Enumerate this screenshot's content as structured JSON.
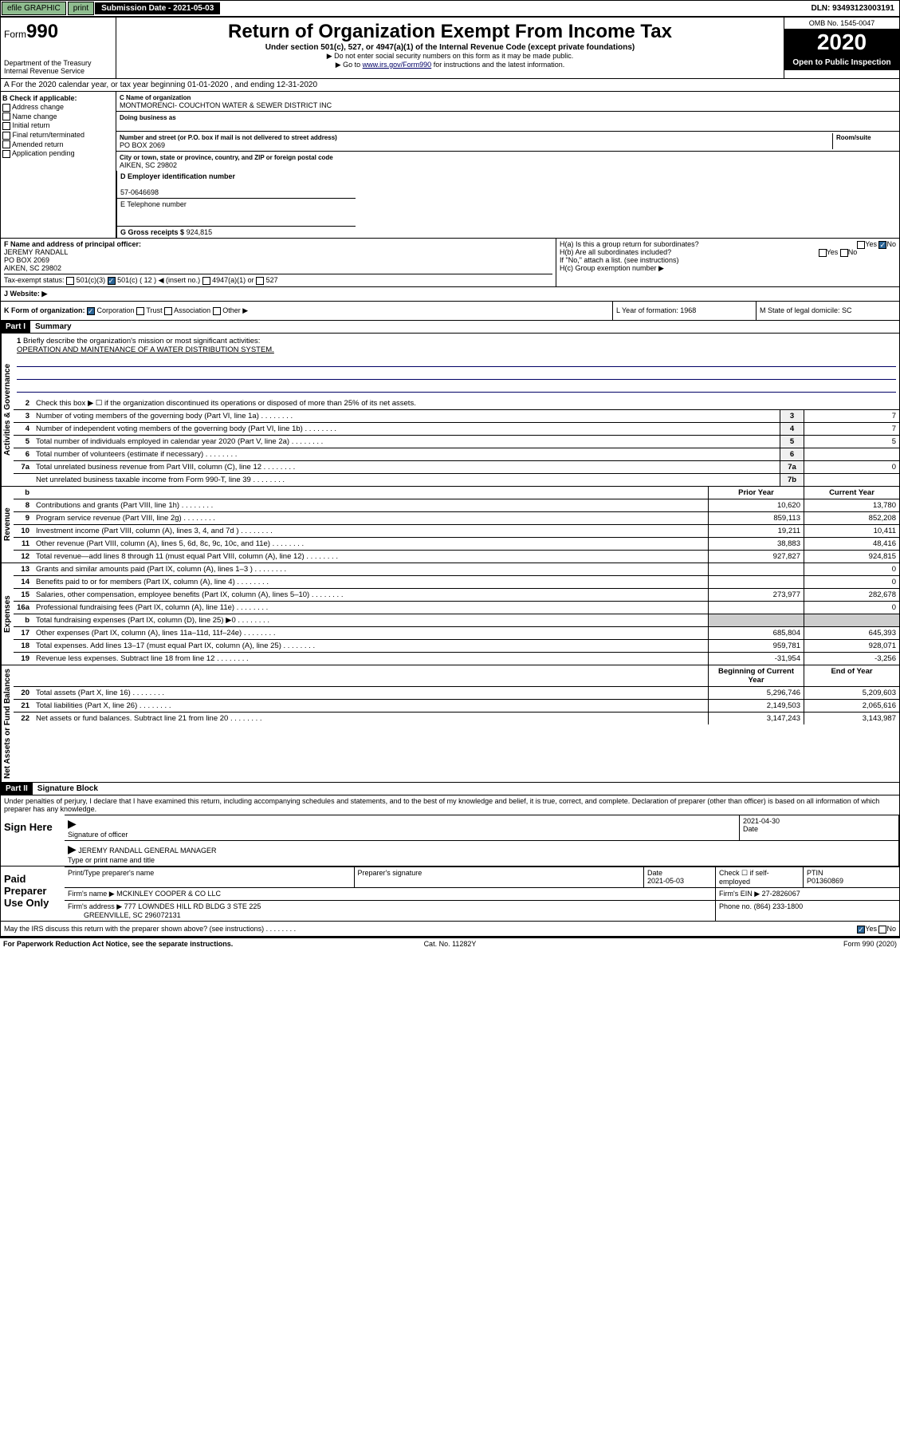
{
  "top": {
    "efile": "efile GRAPHIC",
    "print": "print",
    "sub_lbl": "Submission Date - 2021-05-03",
    "dln": "DLN: 93493123003191"
  },
  "header": {
    "form": "990",
    "form_prefix": "Form",
    "dept": "Department of the Treasury\nInternal Revenue Service",
    "title": "Return of Organization Exempt From Income Tax",
    "subtitle": "Under section 501(c), 527, or 4947(a)(1) of the Internal Revenue Code (except private foundations)",
    "instr1": "▶ Do not enter social security numbers on this form as it may be made public.",
    "instr2": "▶ Go to ",
    "instr2_link": "www.irs.gov/Form990",
    "instr2_suf": " for instructions and the latest information.",
    "omb": "OMB No. 1545-0047",
    "year": "2020",
    "open": "Open to Public Inspection"
  },
  "row_a": "A For the 2020 calendar year, or tax year beginning 01-01-2020   , and ending 12-31-2020",
  "section_b": {
    "hdr": "B Check if applicable:",
    "opts": [
      "Address change",
      "Name change",
      "Initial return",
      "Final return/terminated",
      "Amended return",
      "Application pending"
    ]
  },
  "section_c": {
    "name_lbl": "C Name of organization",
    "name": "MONTMORENCI- COUCHTON WATER & SEWER DISTRICT INC",
    "dba_lbl": "Doing business as",
    "addr_lbl": "Number and street (or P.O. box if mail is not delivered to street address)",
    "room_lbl": "Room/suite",
    "addr": "PO BOX 2069",
    "city_lbl": "City or town, state or province, country, and ZIP or foreign postal code",
    "city": "AIKEN, SC  29802"
  },
  "section_d": {
    "ein_lbl": "D Employer identification number",
    "ein": "57-0646698",
    "tel_lbl": "E Telephone number",
    "gross_lbl": "G Gross receipts $",
    "gross": "924,815"
  },
  "section_f": {
    "lbl": "F  Name and address of principal officer:",
    "name": "JEREMY RANDALL",
    "addr1": "PO BOX 2069",
    "addr2": "AIKEN, SC  29802"
  },
  "section_h": {
    "a": "H(a)  Is this a group return for subordinates?",
    "b": "H(b)  Are all subordinates included?",
    "ifno": "If \"No,\" attach a list. (see instructions)",
    "c": "H(c)  Group exemption number ▶"
  },
  "tax_status": {
    "lbl": "Tax-exempt status:",
    "o1": "501(c)(3)",
    "o2": "501(c) ( 12 ) ◀ (insert no.)",
    "o3": "4947(a)(1) or",
    "o4": "527"
  },
  "website_lbl": "J   Website: ▶",
  "row_k": {
    "lbl": "K Form of organization:",
    "o1": "Corporation",
    "o2": "Trust",
    "o3": "Association",
    "o4": "Other ▶",
    "l": "L Year of formation: 1968",
    "m": "M State of legal domicile: SC"
  },
  "part1": {
    "hdr": "Part I",
    "title": "Summary",
    "l1": "Briefly describe the organization's mission or most significant activities:",
    "mission": "OPERATION AND MAINTENANCE OF A WATER DISTRIBUTION SYSTEM.",
    "l2": "Check this box ▶ ☐  if the organization discontinued its operations or disposed of more than 25% of its net assets.",
    "rows_gov": [
      {
        "n": "3",
        "d": "Number of voting members of the governing body (Part VI, line 1a)",
        "b": "3",
        "v": "7"
      },
      {
        "n": "4",
        "d": "Number of independent voting members of the governing body (Part VI, line 1b)",
        "b": "4",
        "v": "7"
      },
      {
        "n": "5",
        "d": "Total number of individuals employed in calendar year 2020 (Part V, line 2a)",
        "b": "5",
        "v": "5"
      },
      {
        "n": "6",
        "d": "Total number of volunteers (estimate if necessary)",
        "b": "6",
        "v": ""
      },
      {
        "n": "7a",
        "d": "Total unrelated business revenue from Part VIII, column (C), line 12",
        "b": "7a",
        "v": "0"
      },
      {
        "n": "",
        "d": "Net unrelated business taxable income from Form 990-T, line 39",
        "b": "7b",
        "v": ""
      }
    ],
    "col_prior": "Prior Year",
    "col_curr": "Current Year",
    "rows_rev": [
      {
        "n": "8",
        "d": "Contributions and grants (Part VIII, line 1h)",
        "p": "10,620",
        "c": "13,780"
      },
      {
        "n": "9",
        "d": "Program service revenue (Part VIII, line 2g)",
        "p": "859,113",
        "c": "852,208"
      },
      {
        "n": "10",
        "d": "Investment income (Part VIII, column (A), lines 3, 4, and 7d )",
        "p": "19,211",
        "c": "10,411"
      },
      {
        "n": "11",
        "d": "Other revenue (Part VIII, column (A), lines 5, 6d, 8c, 9c, 10c, and 11e)",
        "p": "38,883",
        "c": "48,416"
      },
      {
        "n": "12",
        "d": "Total revenue—add lines 8 through 11 (must equal Part VIII, column (A), line 12)",
        "p": "927,827",
        "c": "924,815"
      }
    ],
    "rows_exp": [
      {
        "n": "13",
        "d": "Grants and similar amounts paid (Part IX, column (A), lines 1–3 )",
        "p": "",
        "c": "0"
      },
      {
        "n": "14",
        "d": "Benefits paid to or for members (Part IX, column (A), line 4)",
        "p": "",
        "c": "0"
      },
      {
        "n": "15",
        "d": "Salaries, other compensation, employee benefits (Part IX, column (A), lines 5–10)",
        "p": "273,977",
        "c": "282,678"
      },
      {
        "n": "16a",
        "d": "Professional fundraising fees (Part IX, column (A), line 11e)",
        "p": "",
        "c": "0"
      },
      {
        "n": "b",
        "d": "Total fundraising expenses (Part IX, column (D), line 25) ▶0",
        "p": "—",
        "c": "—"
      },
      {
        "n": "17",
        "d": "Other expenses (Part IX, column (A), lines 11a–11d, 11f–24e)",
        "p": "685,804",
        "c": "645,393"
      },
      {
        "n": "18",
        "d": "Total expenses. Add lines 13–17 (must equal Part IX, column (A), line 25)",
        "p": "959,781",
        "c": "928,071"
      },
      {
        "n": "19",
        "d": "Revenue less expenses. Subtract line 18 from line 12",
        "p": "-31,954",
        "c": "-3,256"
      }
    ],
    "col_beg": "Beginning of Current Year",
    "col_end": "End of Year",
    "rows_net": [
      {
        "n": "20",
        "d": "Total assets (Part X, line 16)",
        "p": "5,296,746",
        "c": "5,209,603"
      },
      {
        "n": "21",
        "d": "Total liabilities (Part X, line 26)",
        "p": "2,149,503",
        "c": "2,065,616"
      },
      {
        "n": "22",
        "d": "Net assets or fund balances. Subtract line 21 from line 20",
        "p": "3,147,243",
        "c": "3,143,987"
      }
    ],
    "v_gov": "Activities & Governance",
    "v_rev": "Revenue",
    "v_exp": "Expenses",
    "v_net": "Net Assets or Fund Balances"
  },
  "part2": {
    "hdr": "Part II",
    "title": "Signature Block",
    "decl": "Under penalties of perjury, I declare that I have examined this return, including accompanying schedules and statements, and to the best of my knowledge and belief, it is true, correct, and complete. Declaration of preparer (other than officer) is based on all information of which preparer has any knowledge.",
    "sign_here": "Sign Here",
    "sig_officer": "Signature of officer",
    "date": "2021-04-30",
    "date_lbl": "Date",
    "name": "JEREMY RANDALL  GENERAL MANAGER",
    "name_lbl": "Type or print name and title",
    "paid": "Paid Preparer Use Only",
    "pt_name_lbl": "Print/Type preparer's name",
    "pt_sig_lbl": "Preparer's signature",
    "pt_date": "2021-05-03",
    "pt_chk": "Check ☐ if self-employed",
    "ptin_lbl": "PTIN",
    "ptin": "P01360869",
    "firm_lbl": "Firm's name    ▶",
    "firm": "MCKINLEY COOPER & CO LLC",
    "fein_lbl": "Firm's EIN ▶",
    "fein": "27-2826067",
    "faddr_lbl": "Firm's address ▶",
    "faddr": "777 LOWNDES HILL RD BLDG 3 STE 225",
    "faddr2": "GREENVILLE, SC  296072131",
    "phone_lbl": "Phone no.",
    "phone": "(864) 233-1800",
    "discuss": "May the IRS discuss this return with the preparer shown above? (see instructions)"
  },
  "footer": {
    "pra": "For Paperwork Reduction Act Notice, see the separate instructions.",
    "cat": "Cat. No. 11282Y",
    "form": "Form 990 (2020)"
  }
}
